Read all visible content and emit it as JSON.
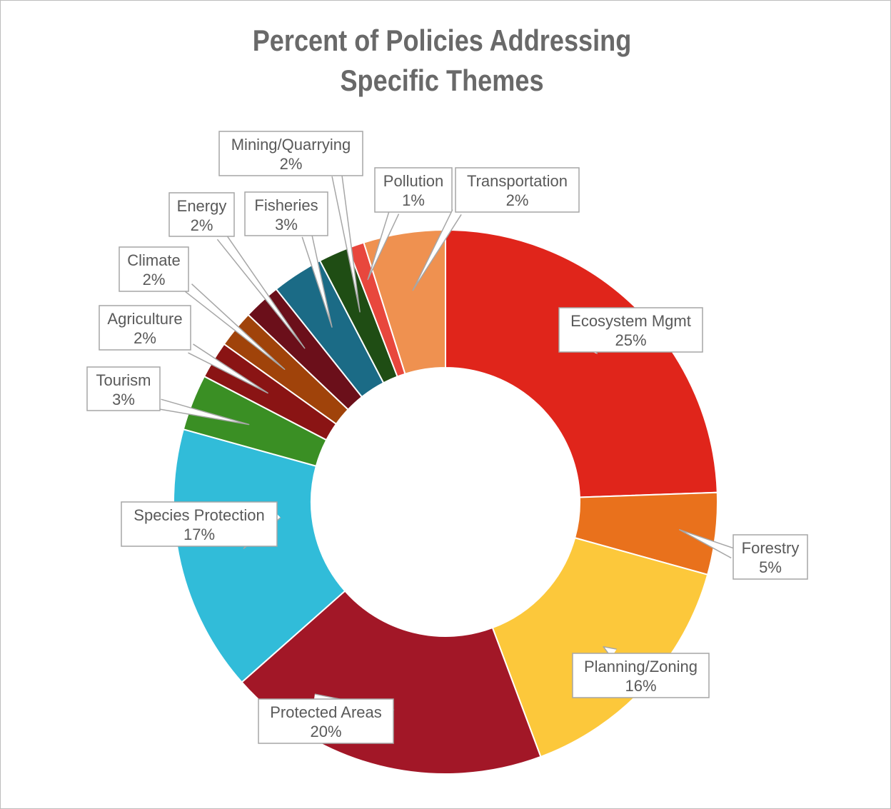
{
  "chart_data": {
    "type": "pie",
    "title_lines": [
      "Percent of Policies Addressing",
      "Specific Themes"
    ],
    "slices": [
      {
        "label": "Ecosystem Mgmt",
        "value": 25,
        "pct": "25%",
        "color": "#e0251b"
      },
      {
        "label": "Forestry",
        "value": 5,
        "pct": "5%",
        "color": "#e9711c"
      },
      {
        "label": "Planning/Zoning",
        "value": 16,
        "pct": "16%",
        "color": "#fcc83b"
      },
      {
        "label": "Protected Areas",
        "value": 20,
        "pct": "20%",
        "color": "#a21727"
      },
      {
        "label": "Species Protection",
        "value": 17,
        "pct": "17%",
        "color": "#31bcd9"
      },
      {
        "label": "Tourism",
        "value": 3,
        "pct": "3%",
        "color": "#3a8f24"
      },
      {
        "label": "Agriculture",
        "value": 2,
        "pct": "2%",
        "color": "#8a1414"
      },
      {
        "label": "Climate",
        "value": 2,
        "pct": "2%",
        "color": "#a0430a"
      },
      {
        "label": "Energy",
        "value": 2,
        "pct": "2%",
        "color": "#6b0f1a"
      },
      {
        "label": "Fisheries",
        "value": 3,
        "pct": "3%",
        "color": "#1b6b86"
      },
      {
        "label": "Mining/Quarrying",
        "value": 2,
        "pct": "2%",
        "color": "#1f4d14"
      },
      {
        "label": "Pollution",
        "value": 1,
        "pct": "1%",
        "color": "#e8473d"
      },
      {
        "label": "Transportation",
        "value": 2,
        "pct": "2%",
        "color": "#ef9150"
      }
    ],
    "legend": "none",
    "data_labels": "callouts"
  }
}
